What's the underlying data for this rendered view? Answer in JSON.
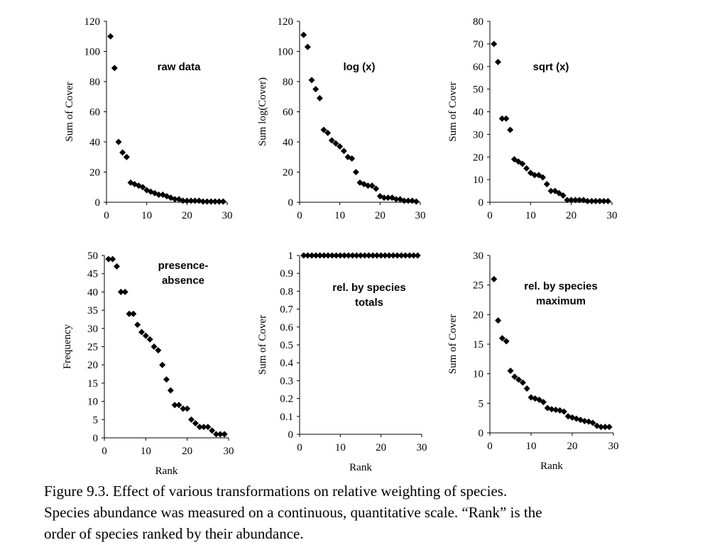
{
  "caption": {
    "line1": "Figure 9.3.  Effect of various transformations on relative weighting of species.",
    "line2": "Species abundance was measured on a continuous, quantitative scale.  “Rank” is the",
    "line3": "order of species ranked by their abundance."
  },
  "chart_data": [
    {
      "type": "scatter",
      "title": "raw data",
      "xlabel": "",
      "ylabel": "Sum of Cover",
      "xlim": [
        0,
        30
      ],
      "ylim": [
        0,
        120
      ],
      "xticks": [
        "0",
        "10",
        "20",
        "30"
      ],
      "yticks": [
        "0",
        "20",
        "40",
        "60",
        "80",
        "100",
        "120"
      ],
      "x": [
        1,
        2,
        3,
        4,
        5,
        6,
        7,
        8,
        9,
        10,
        11,
        12,
        13,
        14,
        15,
        16,
        17,
        18,
        19,
        20,
        21,
        22,
        23,
        24,
        25,
        26,
        27,
        28,
        29
      ],
      "y": [
        110,
        89,
        40,
        33,
        30,
        13,
        12,
        11,
        10,
        8,
        7,
        6,
        5,
        5,
        4,
        3,
        2,
        2,
        1,
        1,
        1,
        1,
        1,
        0.5,
        0.5,
        0.5,
        0.5,
        0.5,
        0.5
      ]
    },
    {
      "type": "scatter",
      "title": "log (x)",
      "xlabel": "",
      "ylabel": "Sum log(Cover)",
      "xlim": [
        0,
        30
      ],
      "ylim": [
        0,
        120
      ],
      "xticks": [
        "0",
        "10",
        "20",
        "30"
      ],
      "yticks": [
        "0",
        "20",
        "40",
        "60",
        "80",
        "100",
        "120"
      ],
      "x": [
        1,
        2,
        3,
        4,
        5,
        6,
        7,
        8,
        9,
        10,
        11,
        12,
        13,
        14,
        15,
        16,
        17,
        18,
        19,
        20,
        21,
        22,
        23,
        24,
        25,
        26,
        27,
        28,
        29
      ],
      "y": [
        111,
        103,
        81,
        75,
        69,
        48,
        46,
        41,
        39,
        37,
        34,
        30,
        29,
        20,
        13,
        12,
        11,
        11,
        9,
        4,
        3,
        3,
        3,
        2,
        2,
        1,
        1,
        1,
        0.5
      ]
    },
    {
      "type": "scatter",
      "title": "sqrt (x)",
      "xlabel": "",
      "ylabel": "Sum of Cover",
      "xlim": [
        0,
        30
      ],
      "ylim": [
        0,
        80
      ],
      "xticks": [
        "0",
        "10",
        "20",
        "30"
      ],
      "yticks": [
        "0",
        "10",
        "20",
        "30",
        "40",
        "50",
        "60",
        "70",
        "80"
      ],
      "x": [
        1,
        2,
        3,
        4,
        5,
        6,
        7,
        8,
        9,
        10,
        11,
        12,
        13,
        14,
        15,
        16,
        17,
        18,
        19,
        20,
        21,
        22,
        23,
        24,
        25,
        26,
        27,
        28,
        29
      ],
      "y": [
        70,
        62,
        37,
        37,
        32,
        19,
        18,
        17,
        15,
        13,
        12,
        12,
        11,
        8,
        5,
        5,
        4,
        3,
        1,
        1,
        1,
        1,
        1,
        0.5,
        0.5,
        0.5,
        0.5,
        0.5,
        0.5
      ]
    },
    {
      "type": "scatter",
      "title": "presence-\nabsence",
      "xlabel": "Rank",
      "ylabel": "Frequency",
      "xlim": [
        0,
        30
      ],
      "ylim": [
        0,
        50
      ],
      "xticks": [
        "0",
        "10",
        "20",
        "30"
      ],
      "yticks": [
        "0",
        "5",
        "10",
        "15",
        "20",
        "25",
        "30",
        "35",
        "40",
        "45",
        "50"
      ],
      "x": [
        1,
        2,
        3,
        4,
        5,
        6,
        7,
        8,
        9,
        10,
        11,
        12,
        13,
        14,
        15,
        16,
        17,
        18,
        19,
        20,
        21,
        22,
        23,
        24,
        25,
        26,
        27,
        28,
        29
      ],
      "y": [
        49,
        49,
        47,
        40,
        40,
        34,
        34,
        31,
        29,
        28,
        27,
        25,
        24,
        20,
        16,
        13,
        9,
        9,
        8,
        8,
        5,
        4,
        3,
        3,
        3,
        2,
        1,
        1,
        1
      ]
    },
    {
      "type": "scatter",
      "title": "rel. by species\ntotals",
      "xlabel": "Rank",
      "ylabel": "Sum of Cover",
      "xlim": [
        0,
        30
      ],
      "ylim": [
        0,
        1
      ],
      "xticks": [
        "0",
        "10",
        "20",
        "30"
      ],
      "yticks": [
        "0",
        "0.1",
        "0.2",
        "0.3",
        "0.4",
        "0.5",
        "0.6",
        "0.7",
        "0.8",
        "0.9",
        "1"
      ],
      "x": [
        1,
        2,
        3,
        4,
        5,
        6,
        7,
        8,
        9,
        10,
        11,
        12,
        13,
        14,
        15,
        16,
        17,
        18,
        19,
        20,
        21,
        22,
        23,
        24,
        25,
        26,
        27,
        28,
        29
      ],
      "y": [
        1,
        1,
        1,
        1,
        1,
        1,
        1,
        1,
        1,
        1,
        1,
        1,
        1,
        1,
        1,
        1,
        1,
        1,
        1,
        1,
        1,
        1,
        1,
        1,
        1,
        1,
        1,
        1,
        1
      ]
    },
    {
      "type": "scatter",
      "title": "rel. by species\nmaximum",
      "xlabel": "Rank",
      "ylabel": "Sum of Cover",
      "xlim": [
        0,
        30
      ],
      "ylim": [
        0,
        30
      ],
      "xticks": [
        "0",
        "10",
        "20",
        "30"
      ],
      "yticks": [
        "0",
        "5",
        "10",
        "15",
        "20",
        "25",
        "30"
      ],
      "x": [
        1,
        2,
        3,
        4,
        5,
        6,
        7,
        8,
        9,
        10,
        11,
        12,
        13,
        14,
        15,
        16,
        17,
        18,
        19,
        20,
        21,
        22,
        23,
        24,
        25,
        26,
        27,
        28,
        29
      ],
      "y": [
        26,
        19,
        16,
        15.5,
        10.5,
        9.5,
        9,
        8.5,
        7.5,
        6,
        5.8,
        5.6,
        5.2,
        4.2,
        4,
        3.9,
        3.8,
        3.6,
        2.8,
        2.6,
        2.4,
        2.2,
        2,
        1.9,
        1.7,
        1.2,
        1,
        1,
        1
      ]
    }
  ]
}
